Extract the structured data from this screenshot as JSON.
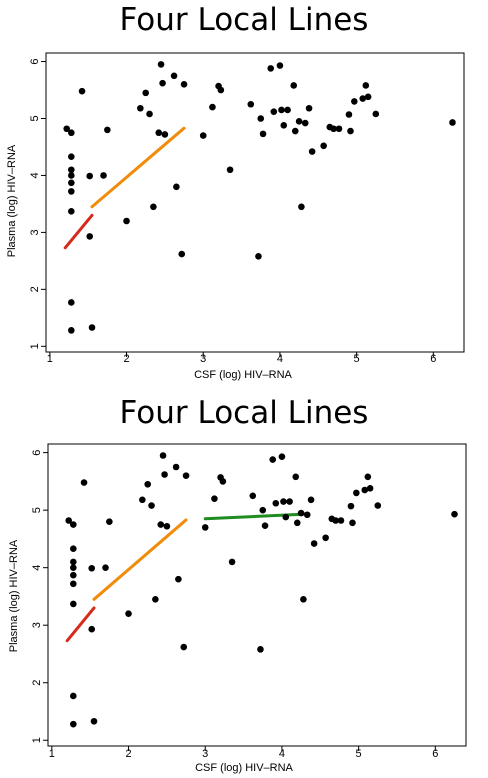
{
  "charts": [
    {
      "title": "Four Local Lines",
      "xlabel": "CSF (log) HIV–RNA",
      "ylabel": "Plasma (log) HIV–RNA"
    },
    {
      "title": "Four Local Lines",
      "xlabel": "CSF (log) HIV–RNA",
      "ylabel": "Plasma (log) HIV–RNA"
    }
  ],
  "chart_data": [
    {
      "type": "scatter",
      "title": "Four Local Lines",
      "xlabel": "CSF (log) HIV–RNA",
      "ylabel": "Plasma (log) HIV–RNA",
      "xlim": [
        0.95,
        6.4
      ],
      "ylim": [
        0.9,
        6.15
      ],
      "xticks": [
        "1",
        "2",
        "3",
        "4",
        "5",
        "6"
      ],
      "yticks": [
        "1",
        "2",
        "3",
        "4",
        "5",
        "6"
      ],
      "grid": false,
      "points": [
        [
          1.22,
          4.82
        ],
        [
          1.28,
          4.75
        ],
        [
          1.28,
          4.33
        ],
        [
          1.28,
          4.1
        ],
        [
          1.28,
          4.0
        ],
        [
          1.28,
          3.87
        ],
        [
          1.28,
          3.72
        ],
        [
          1.28,
          3.37
        ],
        [
          1.28,
          1.77
        ],
        [
          1.28,
          1.28
        ],
        [
          1.42,
          5.48
        ],
        [
          1.52,
          3.99
        ],
        [
          1.52,
          2.93
        ],
        [
          1.55,
          1.33
        ],
        [
          1.7,
          4.0
        ],
        [
          1.75,
          4.8
        ],
        [
          2.0,
          3.2
        ],
        [
          2.18,
          5.18
        ],
        [
          2.25,
          5.45
        ],
        [
          2.3,
          5.08
        ],
        [
          2.35,
          3.45
        ],
        [
          2.42,
          4.75
        ],
        [
          2.45,
          5.95
        ],
        [
          2.47,
          5.62
        ],
        [
          2.5,
          4.72
        ],
        [
          2.62,
          5.75
        ],
        [
          2.65,
          3.8
        ],
        [
          2.72,
          2.62
        ],
        [
          2.75,
          5.6
        ],
        [
          3.0,
          4.7
        ],
        [
          3.12,
          5.2
        ],
        [
          3.2,
          5.57
        ],
        [
          3.23,
          5.5
        ],
        [
          3.35,
          4.1
        ],
        [
          3.62,
          5.25
        ],
        [
          3.72,
          2.58
        ],
        [
          3.75,
          5.0
        ],
        [
          3.78,
          4.73
        ],
        [
          3.88,
          5.88
        ],
        [
          3.92,
          5.12
        ],
        [
          4.0,
          5.93
        ],
        [
          4.02,
          5.15
        ],
        [
          4.05,
          4.88
        ],
        [
          4.1,
          5.15
        ],
        [
          4.18,
          5.58
        ],
        [
          4.2,
          4.78
        ],
        [
          4.25,
          4.95
        ],
        [
          4.28,
          3.45
        ],
        [
          4.33,
          4.92
        ],
        [
          4.38,
          5.18
        ],
        [
          4.42,
          4.42
        ],
        [
          4.57,
          4.52
        ],
        [
          4.65,
          4.85
        ],
        [
          4.7,
          4.82
        ],
        [
          4.77,
          4.82
        ],
        [
          4.9,
          5.07
        ],
        [
          4.92,
          4.78
        ],
        [
          4.97,
          5.3
        ],
        [
          5.08,
          5.35
        ],
        [
          5.12,
          5.58
        ],
        [
          5.15,
          5.38
        ],
        [
          5.25,
          5.08
        ],
        [
          6.25,
          4.93
        ]
      ],
      "local_lines": [
        {
          "color": "#d62a1c",
          "x": [
            1.2,
            1.55
          ],
          "y": [
            2.73,
            3.3
          ]
        },
        {
          "color": "#f08c0a",
          "x": [
            1.55,
            2.75
          ],
          "y": [
            3.45,
            4.83
          ]
        }
      ]
    },
    {
      "type": "scatter",
      "title": "Four Local Lines",
      "xlabel": "CSF (log) HIV–RNA",
      "ylabel": "Plasma (log) HIV–RNA",
      "xlim": [
        0.95,
        6.4
      ],
      "ylim": [
        0.9,
        6.15
      ],
      "xticks": [
        "1",
        "2",
        "3",
        "4",
        "5",
        "6"
      ],
      "yticks": [
        "1",
        "2",
        "3",
        "4",
        "5",
        "6"
      ],
      "grid": false,
      "points": [
        [
          1.22,
          4.82
        ],
        [
          1.28,
          4.75
        ],
        [
          1.28,
          4.33
        ],
        [
          1.28,
          4.1
        ],
        [
          1.28,
          4.0
        ],
        [
          1.28,
          3.87
        ],
        [
          1.28,
          3.72
        ],
        [
          1.28,
          3.37
        ],
        [
          1.28,
          1.77
        ],
        [
          1.28,
          1.28
        ],
        [
          1.42,
          5.48
        ],
        [
          1.52,
          3.99
        ],
        [
          1.52,
          2.93
        ],
        [
          1.55,
          1.33
        ],
        [
          1.7,
          4.0
        ],
        [
          1.75,
          4.8
        ],
        [
          2.0,
          3.2
        ],
        [
          2.18,
          5.18
        ],
        [
          2.25,
          5.45
        ],
        [
          2.3,
          5.08
        ],
        [
          2.35,
          3.45
        ],
        [
          2.42,
          4.75
        ],
        [
          2.45,
          5.95
        ],
        [
          2.47,
          5.62
        ],
        [
          2.5,
          4.72
        ],
        [
          2.62,
          5.75
        ],
        [
          2.65,
          3.8
        ],
        [
          2.72,
          2.62
        ],
        [
          2.75,
          5.6
        ],
        [
          3.0,
          4.7
        ],
        [
          3.12,
          5.2
        ],
        [
          3.2,
          5.57
        ],
        [
          3.23,
          5.5
        ],
        [
          3.35,
          4.1
        ],
        [
          3.62,
          5.25
        ],
        [
          3.72,
          2.58
        ],
        [
          3.75,
          5.0
        ],
        [
          3.78,
          4.73
        ],
        [
          3.88,
          5.88
        ],
        [
          3.92,
          5.12
        ],
        [
          4.0,
          5.93
        ],
        [
          4.02,
          5.15
        ],
        [
          4.05,
          4.88
        ],
        [
          4.1,
          5.15
        ],
        [
          4.18,
          5.58
        ],
        [
          4.2,
          4.78
        ],
        [
          4.25,
          4.95
        ],
        [
          4.28,
          3.45
        ],
        [
          4.33,
          4.92
        ],
        [
          4.38,
          5.18
        ],
        [
          4.42,
          4.42
        ],
        [
          4.57,
          4.52
        ],
        [
          4.65,
          4.85
        ],
        [
          4.7,
          4.82
        ],
        [
          4.77,
          4.82
        ],
        [
          4.9,
          5.07
        ],
        [
          4.92,
          4.78
        ],
        [
          4.97,
          5.3
        ],
        [
          5.08,
          5.35
        ],
        [
          5.12,
          5.58
        ],
        [
          5.15,
          5.38
        ],
        [
          5.25,
          5.08
        ],
        [
          6.25,
          4.93
        ]
      ],
      "local_lines": [
        {
          "color": "#d62a1c",
          "x": [
            1.2,
            1.55
          ],
          "y": [
            2.73,
            3.3
          ]
        },
        {
          "color": "#f08c0a",
          "x": [
            1.55,
            2.75
          ],
          "y": [
            3.45,
            4.83
          ]
        },
        {
          "color": "#1e8c1e",
          "x": [
            3.0,
            4.3
          ],
          "y": [
            4.85,
            4.93
          ]
        }
      ]
    }
  ]
}
